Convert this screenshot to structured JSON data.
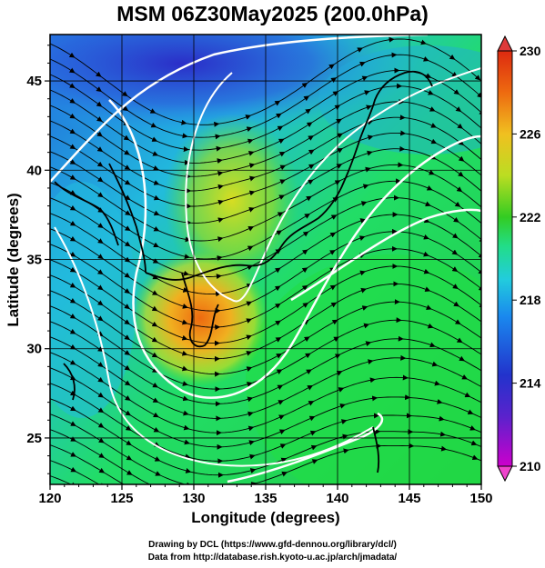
{
  "title": "MSM 06Z30May2025 (200.0hPa)",
  "credits": {
    "line1": "Drawing by DCL (https://www.gfd-dennou.org/library/dcl/)",
    "line2": "Data from http://database.rish.kyoto-u.ac.jp/arch/jmadata/"
  },
  "chart_data": {
    "type": "heatmap",
    "title": "MSM 06Z30May2025 (200.0hPa)",
    "xlabel": "Longitude (degrees)",
    "ylabel": "Latitude  (degrees)",
    "xlim": [
      120,
      150
    ],
    "ylim": [
      22.4,
      47.6
    ],
    "x_ticks": [
      "120",
      "125",
      "130",
      "135",
      "140",
      "145",
      "150"
    ],
    "y_ticks": [
      "25",
      "30",
      "35",
      "40",
      "45"
    ],
    "x_tick_values": [
      120,
      125,
      130,
      135,
      140,
      145,
      150
    ],
    "y_tick_values": [
      25,
      30,
      35,
      40,
      45
    ],
    "colorbar": {
      "range": [
        210,
        230
      ],
      "labels": [
        "210",
        "214",
        "218",
        "222",
        "226",
        "230"
      ],
      "label_values": [
        210,
        214,
        218,
        222,
        226,
        230
      ],
      "colors": [
        "#cc00cc",
        "#2233cc",
        "#1a88ee",
        "#22ccdd",
        "#22dd55",
        "#33cc22",
        "#bbdd22",
        "#f0c020",
        "#ee6a10",
        "#dd2a10"
      ],
      "extend": "both"
    },
    "field_features": [
      {
        "kind": "warm core",
        "lon": 130.5,
        "lat": 31.0,
        "value": 227
      },
      {
        "kind": "warm ridge",
        "lon": 133.0,
        "lat": 38.5,
        "value": 224
      },
      {
        "kind": "cool region",
        "lon": 128.0,
        "lat": 46.0,
        "value": 214
      }
    ],
    "overlay": "streamlines with arrows, white contours, coastlines"
  }
}
